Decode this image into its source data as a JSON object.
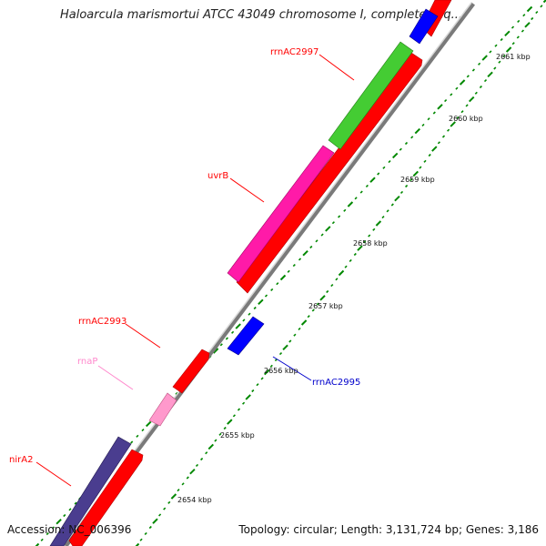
{
  "title": "Haloarcula marismortui ATCC 43049 chromosome I, complete seq...",
  "accession": "Accession: NC_006396",
  "summary": "Topology: circular; Length: 3,131,724 bp; Genes: 3,186",
  "kbp_ticks": [
    "2654 kbp",
    "2655 kbp",
    "2656 kbp",
    "2657 kbp",
    "2658 kbp",
    "2659 kbp",
    "2660 kbp",
    "2661 kbp"
  ],
  "gene_labels": [
    {
      "name": "rrnAC2997",
      "color": "#ff0000"
    },
    {
      "name": "uvrB",
      "color": "#ff0000"
    },
    {
      "name": "rrnAC2993",
      "color": "#ff0000"
    },
    {
      "name": "rnaP",
      "color": "#ff88cc"
    },
    {
      "name": "nirA2",
      "color": "#ff0000"
    },
    {
      "name": "rrnAC2995",
      "color": "#0000cc"
    }
  ],
  "colors": {
    "backbone": "#8a8a8a",
    "cds_red": "#ff0000",
    "uvrB_magenta": "#ff1aa8",
    "green_feature": "#44cc33",
    "blue_feature": "#0000ff",
    "purple_feature": "#4a3d8f",
    "pink_feature": "#ff99cc",
    "tick_green": "#008800"
  }
}
